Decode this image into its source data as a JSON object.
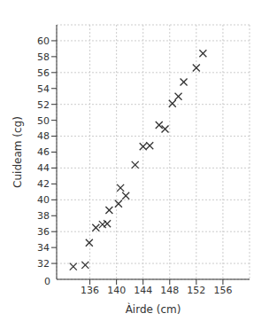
{
  "chart_data": {
    "type": "scatter",
    "x_label": "Àirde (cm)",
    "y_label": "Cuideam (cg)",
    "x": [
      133.5,
      135.3,
      135.9,
      136.9,
      137.9,
      138.6,
      138.9,
      140.3,
      140.6,
      141.4,
      142.8,
      144.0,
      145.0,
      146.4,
      147.3,
      148.4,
      149.3,
      150.1,
      152.0,
      153.0
    ],
    "values": [
      31.6,
      31.8,
      34.6,
      36.5,
      36.9,
      37.0,
      38.7,
      39.5,
      41.5,
      40.5,
      44.4,
      46.7,
      46.8,
      49.4,
      48.9,
      52.1,
      53.0,
      54.8,
      56.6,
      58.4
    ],
    "color": "#333333",
    "marker": "x",
    "xlim": [
      131,
      160
    ],
    "xticks": [
      136,
      140,
      144,
      148,
      152,
      156
    ],
    "ylim": [
      30,
      62
    ],
    "yticks": [
      32,
      34,
      36,
      38,
      40,
      42,
      44,
      46,
      48,
      50,
      52,
      54,
      56,
      58,
      60
    ],
    "grid": true,
    "annotations": [
      {
        "text": "0"
      }
    ]
  }
}
